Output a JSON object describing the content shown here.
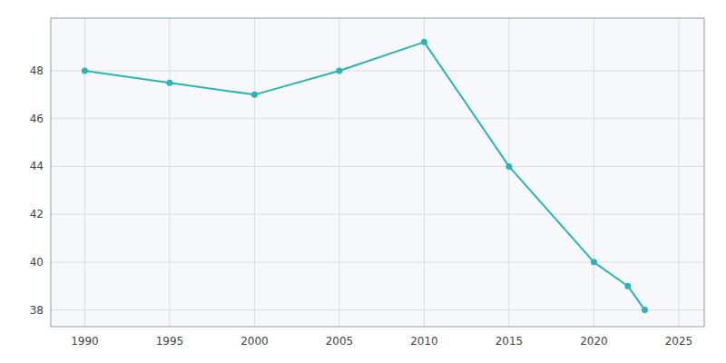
{
  "chart_data": {
    "type": "line",
    "x": [
      1990,
      1995,
      2000,
      2005,
      2010,
      2015,
      2020,
      2022,
      2023
    ],
    "values": [
      48,
      47.5,
      47.0,
      48.0,
      49.2,
      44.0,
      40.0,
      39.0,
      38.0
    ],
    "color": "#2AB5B5",
    "marker": "circle",
    "xlim": [
      1988,
      2026.5
    ],
    "ylim": [
      37.3,
      50.2
    ],
    "xticks": [
      1990,
      1995,
      2000,
      2005,
      2010,
      2015,
      2020,
      2025
    ],
    "yticks": [
      38,
      40,
      42,
      44,
      46,
      48
    ],
    "grid": true
  }
}
